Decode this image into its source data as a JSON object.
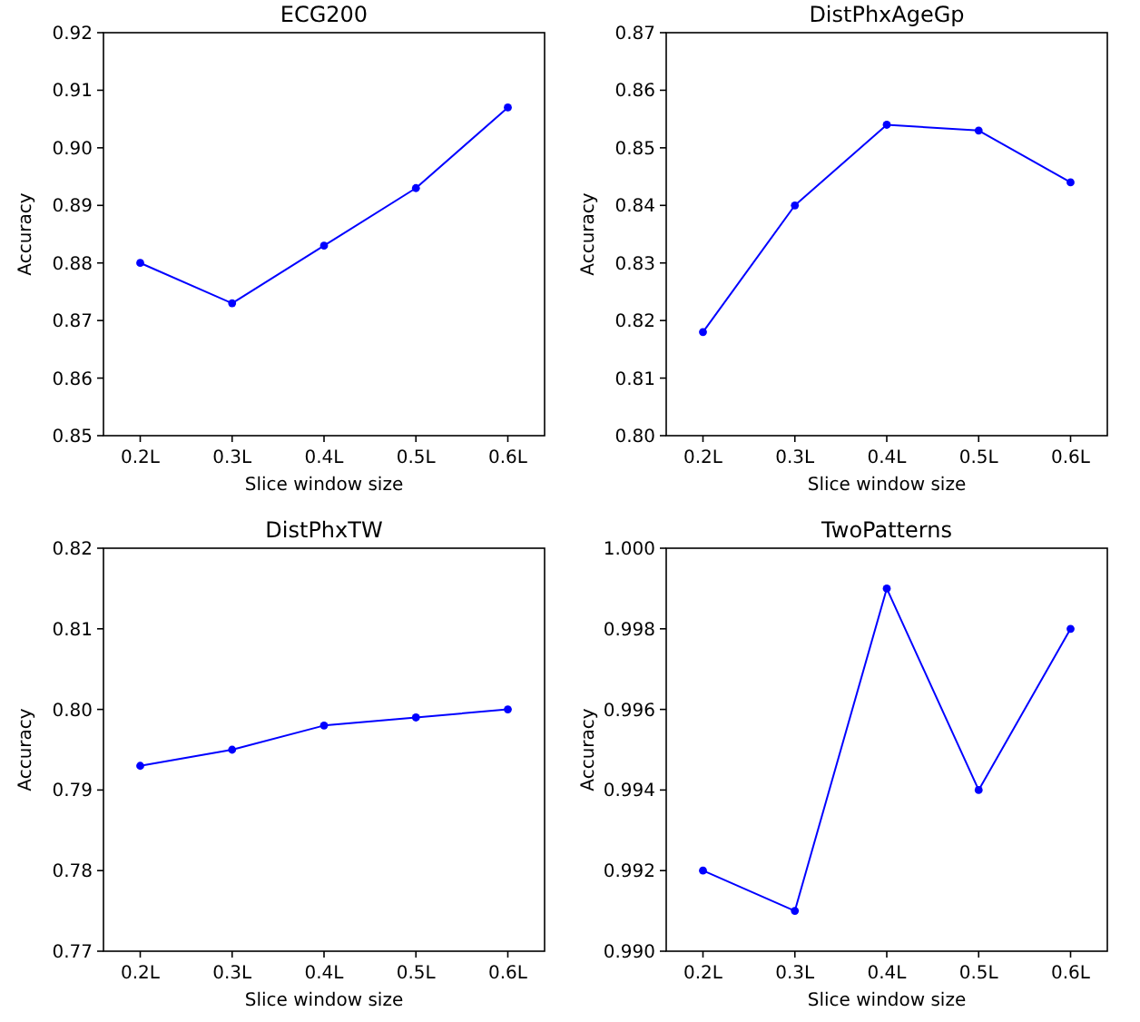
{
  "chart_data": [
    {
      "type": "line",
      "title": "ECG200",
      "xlabel": "Slice window size",
      "ylabel": "Accuracy",
      "categories": [
        "0.2L",
        "0.3L",
        "0.4L",
        "0.5L",
        "0.6L"
      ],
      "series": [
        {
          "color": "#0000ff",
          "values": [
            0.88,
            0.873,
            0.883,
            0.893,
            0.907
          ]
        }
      ],
      "ylim": [
        0.85,
        0.92
      ],
      "yticks": [
        0.85,
        {
          "value": 0.86,
          "label": "0.86"
        },
        0.87,
        0.88,
        0.89,
        {
          "value": 0.9,
          "label": "0.90"
        },
        0.91,
        0.92
      ],
      "marker": "circle",
      "grid": false
    },
    {
      "type": "line",
      "title": "DistPhxAgeGp",
      "xlabel": "Slice window size",
      "ylabel": "Accuracy",
      "categories": [
        "0.2L",
        "0.3L",
        "0.4L",
        "0.5L",
        "0.6L"
      ],
      "series": [
        {
          "color": "#0000ff",
          "values": [
            0.818,
            0.84,
            0.854,
            0.853,
            0.844
          ]
        }
      ],
      "ylim": [
        0.8,
        0.87
      ],
      "yticks": [
        {
          "value": 0.8,
          "label": "0.80"
        },
        0.81,
        0.82,
        0.83,
        0.84,
        0.85,
        0.86,
        0.87
      ],
      "marker": "circle",
      "grid": false
    },
    {
      "type": "line",
      "title": "DistPhxTW",
      "xlabel": "Slice window size",
      "ylabel": "Accuracy",
      "categories": [
        "0.2L",
        "0.3L",
        "0.4L",
        "0.5L",
        "0.6L"
      ],
      "series": [
        {
          "color": "#0000ff",
          "values": [
            0.793,
            0.795,
            0.798,
            0.799,
            0.8
          ]
        }
      ],
      "ylim": [
        0.77,
        0.82
      ],
      "yticks": [
        0.77,
        0.78,
        0.79,
        {
          "value": 0.8,
          "label": "0.80"
        },
        0.81,
        0.82
      ],
      "marker": "circle",
      "grid": false
    },
    {
      "type": "line",
      "title": "TwoPatterns",
      "xlabel": "Slice window size",
      "ylabel": "Accuracy",
      "categories": [
        "0.2L",
        "0.3L",
        "0.4L",
        "0.5L",
        "0.6L"
      ],
      "series": [
        {
          "color": "#0000ff",
          "values": [
            0.992,
            0.991,
            0.999,
            0.994,
            0.998
          ]
        }
      ],
      "ylim": [
        0.99,
        1.0
      ],
      "yticks": [
        {
          "value": 0.99,
          "label": "0.990"
        },
        0.992,
        0.994,
        0.996,
        0.998,
        {
          "value": 1,
          "label": "1.000"
        }
      ],
      "marker": "circle",
      "grid": false
    }
  ]
}
